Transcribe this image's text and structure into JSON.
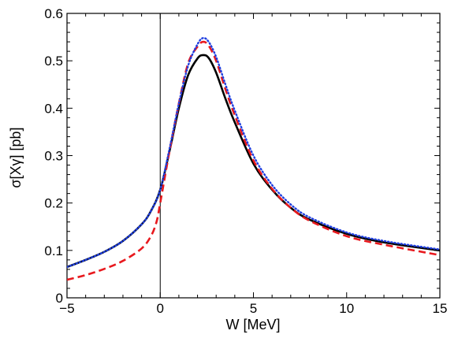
{
  "chart_data": {
    "type": "line",
    "title": "",
    "xlabel": "W [MeV]",
    "ylabel": "σ[Xγ] [pb]",
    "xlim": [
      -5,
      15
    ],
    "ylim": [
      0,
      0.6
    ],
    "xticks": [
      -5,
      0,
      5,
      10,
      15
    ],
    "yticks": [
      0,
      0.1,
      0.2,
      0.3,
      0.4,
      0.5,
      0.6
    ],
    "xtick_labels": [
      "−5",
      "0",
      "5",
      "10",
      "15"
    ],
    "ytick_labels": [
      "0",
      "0.1",
      "0.2",
      "0.3",
      "0.4",
      "0.5",
      "0.6"
    ],
    "grid": false,
    "vertical_reference_line_x": 0,
    "series": [
      {
        "style": "solid",
        "color": "#000000",
        "x": [
          -5,
          -4,
          -3,
          -2,
          -1,
          -0.5,
          0,
          0.5,
          1,
          1.5,
          2,
          2.3,
          2.6,
          3,
          3.5,
          4,
          5,
          6,
          7,
          8,
          10,
          12,
          15
        ],
        "y": [
          0.065,
          0.08,
          0.097,
          0.12,
          0.155,
          0.183,
          0.228,
          0.31,
          0.4,
          0.47,
          0.505,
          0.512,
          0.506,
          0.475,
          0.42,
          0.37,
          0.283,
          0.228,
          0.19,
          0.165,
          0.135,
          0.117,
          0.1
        ]
      },
      {
        "style": "dashed",
        "color": "#e8191e",
        "x": [
          -5,
          -4,
          -3,
          -2,
          -1,
          -0.5,
          -0.2,
          0,
          0.5,
          1,
          1.5,
          2,
          2.3,
          2.6,
          3,
          3.5,
          4,
          5,
          6,
          7,
          8,
          10,
          12,
          15
        ],
        "y": [
          0.038,
          0.048,
          0.061,
          0.078,
          0.104,
          0.13,
          0.16,
          0.2,
          0.31,
          0.41,
          0.495,
          0.53,
          0.54,
          0.532,
          0.5,
          0.44,
          0.385,
          0.29,
          0.23,
          0.19,
          0.163,
          0.13,
          0.112,
          0.09
        ]
      },
      {
        "style": "dotted",
        "color": "#1f3fe0",
        "x": [
          -5,
          -4,
          -3,
          -2,
          -1,
          -0.5,
          0,
          0.5,
          1,
          1.5,
          2,
          2.3,
          2.6,
          3,
          3.5,
          4,
          5,
          6,
          7,
          8,
          10,
          12,
          15
        ],
        "y": [
          0.065,
          0.08,
          0.097,
          0.12,
          0.155,
          0.183,
          0.228,
          0.315,
          0.41,
          0.49,
          0.535,
          0.548,
          0.54,
          0.508,
          0.45,
          0.395,
          0.3,
          0.238,
          0.197,
          0.17,
          0.138,
          0.12,
          0.102
        ]
      }
    ]
  }
}
